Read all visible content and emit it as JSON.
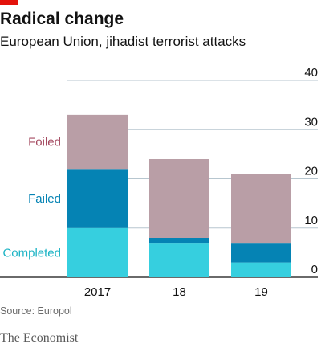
{
  "header": {
    "title": "Radical change",
    "subtitle": "European Union, jihadist terrorist attacks",
    "accent_color": "#e3120b"
  },
  "footer": {
    "source": "Source: Europol",
    "brand": "The Economist"
  },
  "chart_data": {
    "type": "bar",
    "stacked": true,
    "categories": [
      "2017",
      "18",
      "19"
    ],
    "series": [
      {
        "name": "Completed",
        "color": "#36cfdf",
        "values": [
          10,
          7,
          3
        ]
      },
      {
        "name": "Failed",
        "color": "#0583b4",
        "values": [
          12,
          1,
          4
        ]
      },
      {
        "name": "Foiled",
        "color": "#b99ea6",
        "values": [
          11,
          16,
          14
        ]
      }
    ],
    "series_label_colors": [
      "#1ab3c4",
      "#0583b4",
      "#a44a60"
    ],
    "ylim": [
      0,
      40
    ],
    "yticks": [
      "40",
      "30",
      "20",
      "10",
      "0"
    ],
    "ytick_values": [
      40,
      30,
      20,
      10,
      0
    ],
    "yaxis_side": "right",
    "grid": true,
    "legend": "inline-left"
  }
}
